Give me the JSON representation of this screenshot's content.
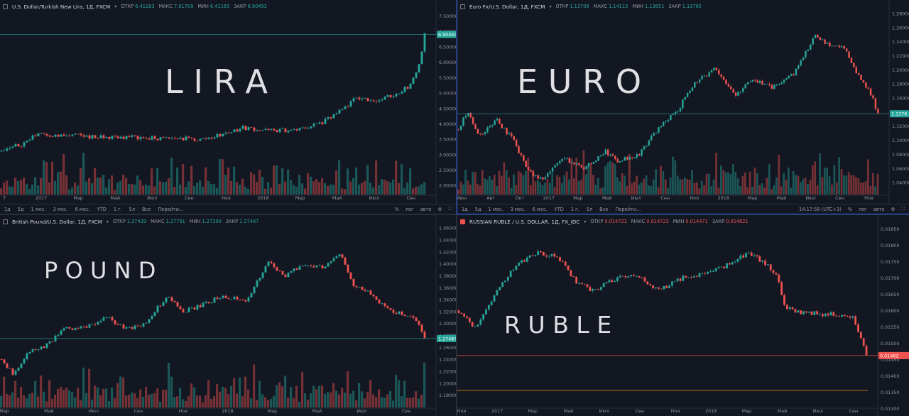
{
  "panels": [
    {
      "id": "lira",
      "symbol": "U.S. Dollar/Turkish New Lira, 1Д, FXCM",
      "icon": "square-icon",
      "ohlc": [
        {
          "k": "ОТКР",
          "v": "6.41183",
          "dir": "up"
        },
        {
          "k": "МАКС",
          "v": "7.01709",
          "dir": "up"
        },
        {
          "k": "МИН",
          "v": "6.41183",
          "dir": "up"
        },
        {
          "k": "ЗАКР",
          "v": "6.90493",
          "dir": "up"
        }
      ],
      "overlay": "LIRA",
      "price_label": "6.90493",
      "toolbar": true
    },
    {
      "id": "euro",
      "symbol": "Euro Fx/U.S. Dollar, 1Д, FXCM",
      "icon": "square-icon",
      "ohlc": [
        {
          "k": "ОТКР",
          "v": "1.13709",
          "dir": "up"
        },
        {
          "k": "МАКС",
          "v": "1.14115",
          "dir": "up"
        },
        {
          "k": "МИН",
          "v": "1.13651",
          "dir": "up"
        },
        {
          "k": "ЗАКР",
          "v": "1.13765",
          "dir": "up"
        }
      ],
      "overlay": "EURO",
      "price_label": "1.1376",
      "toolbar": true,
      "clock": "14:17:58 (UTC+3)"
    },
    {
      "id": "pound",
      "symbol": "British Pound/U.S. Dollar, 1Д, FXCM",
      "icon": "square-icon",
      "ohlc": [
        {
          "k": "ОТКР",
          "v": "1.27439",
          "dir": "up"
        },
        {
          "k": "МАКС",
          "v": "1.27791",
          "dir": "up"
        },
        {
          "k": "МИН",
          "v": "1.27300",
          "dir": "up"
        },
        {
          "k": "ЗАКР",
          "v": "1.27487",
          "dir": "up"
        }
      ],
      "overlay": "POUND",
      "price_label": "1.27487",
      "toolbar": false
    },
    {
      "id": "ruble",
      "symbol": "RUSSIAN RUBLE / U.S. DOLLAR, 1Д, FX_IDC",
      "icon": "flag-icon",
      "ohlc": [
        {
          "k": "ОТКР",
          "v": "0.014721",
          "dir": "dn"
        },
        {
          "k": "МАКС",
          "v": "0.014723",
          "dir": "dn"
        },
        {
          "k": "МИН",
          "v": "0.014471",
          "dir": "dn"
        },
        {
          "k": "ЗАКР",
          "v": "0.014621",
          "dir": "dn"
        }
      ],
      "overlay": "RUBLE",
      "price_label": "0.01462",
      "toolbar": false
    }
  ],
  "toolbar_items": [
    "1д",
    "5д",
    "1 мес.",
    "3 мес.",
    "6 мес.",
    "YTD",
    "1 г.",
    "5л",
    "Все",
    "Перейти..."
  ],
  "toolbar_right": [
    "%",
    "лог",
    "авто"
  ],
  "chart_data": [
    {
      "type": "candlestick",
      "title": "U.S. Dollar/Turkish New Lira, 1Д, FXCM",
      "yticks": [
        "7.50000",
        "7.00000",
        "6.50000",
        "6.00000",
        "5.50000",
        "5.00000",
        "4.50000",
        "4.00000",
        "3.50000",
        "3.00000",
        "2.50000",
        "2.00000"
      ],
      "ylim": [
        1.75,
        7.7
      ],
      "xticks": [
        "7",
        "2017",
        "Мар",
        "Май",
        "Июл",
        "Сен",
        "Ноя",
        "2018",
        "Мар",
        "Май",
        "Июл",
        "Сен"
      ],
      "path": [
        [
          0,
          3.1
        ],
        [
          0.05,
          3.35
        ],
        [
          0.09,
          3.72
        ],
        [
          0.13,
          3.6
        ],
        [
          0.18,
          3.62
        ],
        [
          0.24,
          3.55
        ],
        [
          0.3,
          3.58
        ],
        [
          0.36,
          3.52
        ],
        [
          0.42,
          3.53
        ],
        [
          0.47,
          3.48
        ],
        [
          0.52,
          3.65
        ],
        [
          0.57,
          3.88
        ],
        [
          0.63,
          3.78
        ],
        [
          0.7,
          3.8
        ],
        [
          0.76,
          4.05
        ],
        [
          0.8,
          4.4
        ],
        [
          0.84,
          4.85
        ],
        [
          0.89,
          4.75
        ],
        [
          0.93,
          4.95
        ],
        [
          0.97,
          5.3
        ],
        [
          0.985,
          5.9
        ],
        [
          0.993,
          6.4
        ],
        [
          1.0,
          6.9
        ]
      ],
      "last": 6.90493,
      "colors": {
        "up": "#26a69a",
        "down": "#ef5350",
        "last_line": "#26a69a"
      }
    },
    {
      "type": "candlestick",
      "title": "Euro Fx/U.S. Dollar, 1Д, FXCM",
      "yticks": [
        "1.28000",
        "1.26000",
        "1.24000",
        "1.22000",
        "1.20000",
        "1.18000",
        "1.16000",
        "1.14000",
        "1.12000",
        "1.10000",
        "1.08000",
        "1.06000",
        "1.04000"
      ],
      "ylim": [
        1.025,
        1.285
      ],
      "xticks": [
        "Июн",
        "Авг",
        "Окт",
        "2017",
        "Мар",
        "Май",
        "Июл",
        "Сен",
        "Ноя",
        "2018",
        "Мар",
        "Май",
        "Июл",
        "Сен",
        "Ноя"
      ],
      "path": [
        [
          0,
          1.115
        ],
        [
          0.02,
          1.14
        ],
        [
          0.05,
          1.105
        ],
        [
          0.09,
          1.13
        ],
        [
          0.13,
          1.1
        ],
        [
          0.17,
          1.055
        ],
        [
          0.2,
          1.045
        ],
        [
          0.25,
          1.075
        ],
        [
          0.3,
          1.06
        ],
        [
          0.35,
          1.085
        ],
        [
          0.38,
          1.07
        ],
        [
          0.43,
          1.08
        ],
        [
          0.48,
          1.12
        ],
        [
          0.52,
          1.14
        ],
        [
          0.56,
          1.18
        ],
        [
          0.61,
          1.2
        ],
        [
          0.66,
          1.165
        ],
        [
          0.7,
          1.185
        ],
        [
          0.75,
          1.175
        ],
        [
          0.8,
          1.195
        ],
        [
          0.85,
          1.25
        ],
        [
          0.88,
          1.235
        ],
        [
          0.92,
          1.23
        ],
        [
          0.95,
          1.195
        ],
        [
          0.98,
          1.17
        ],
        [
          1.0,
          1.138
        ]
      ],
      "last": 1.13765,
      "colors": {
        "up": "#26a69a",
        "down": "#ef5350",
        "last_line": "#26a69a"
      }
    },
    {
      "type": "candlestick",
      "title": "British Pound/U.S. Dollar, 1Д, FXCM",
      "yticks": [
        "1.46000",
        "1.44000",
        "1.42000",
        "1.40000",
        "1.38000",
        "1.36000",
        "1.34000",
        "1.32000",
        "1.30000",
        "1.28000",
        "1.26000",
        "1.24000",
        "1.22000",
        "1.20000",
        "1.18000"
      ],
      "ylim": [
        1.17,
        1.465
      ],
      "xticks": [
        "Мар",
        "Май",
        "Июл",
        "Сен",
        "Ноя",
        "2018",
        "Мар",
        "Май",
        "Июл",
        "Сен"
      ],
      "path": [
        [
          0,
          1.24
        ],
        [
          0.03,
          1.215
        ],
        [
          0.06,
          1.25
        ],
        [
          0.1,
          1.26
        ],
        [
          0.15,
          1.29
        ],
        [
          0.2,
          1.295
        ],
        [
          0.25,
          1.31
        ],
        [
          0.3,
          1.29
        ],
        [
          0.34,
          1.3
        ],
        [
          0.39,
          1.345
        ],
        [
          0.43,
          1.32
        ],
        [
          0.47,
          1.33
        ],
        [
          0.52,
          1.345
        ],
        [
          0.58,
          1.34
        ],
        [
          0.63,
          1.405
        ],
        [
          0.67,
          1.38
        ],
        [
          0.72,
          1.4
        ],
        [
          0.76,
          1.395
        ],
        [
          0.8,
          1.42
        ],
        [
          0.83,
          1.365
        ],
        [
          0.87,
          1.35
        ],
        [
          0.91,
          1.325
        ],
        [
          0.95,
          1.315
        ],
        [
          0.98,
          1.305
        ],
        [
          1.0,
          1.275
        ]
      ],
      "last": 1.27487,
      "colors": {
        "up": "#26a69a",
        "down": "#ef5350",
        "last_line": "#26a69a"
      }
    },
    {
      "type": "candlestick",
      "title": "RUSSIAN RUBLE / U.S. DOLLAR, 1Д, FX_IDC",
      "yticks": [
        "0.01850",
        "0.01800",
        "0.01750",
        "0.01700",
        "0.01650",
        "0.01600",
        "0.01550",
        "0.01500",
        "0.01450",
        "0.01400",
        "0.01350",
        "0.01300"
      ],
      "ylim": [
        0.01292,
        0.01862
      ],
      "xticks": [
        "Ноя",
        "2017",
        "Мар",
        "Май",
        "Июл",
        "Сен",
        "Ноя",
        "2018",
        "Мар",
        "Май",
        "Июл",
        "Сен"
      ],
      "path": [
        [
          0,
          0.016
        ],
        [
          0.04,
          0.0155
        ],
        [
          0.09,
          0.0165
        ],
        [
          0.14,
          0.0174
        ],
        [
          0.19,
          0.01775
        ],
        [
          0.24,
          0.0177
        ],
        [
          0.29,
          0.01685
        ],
        [
          0.33,
          0.0166
        ],
        [
          0.39,
          0.017
        ],
        [
          0.44,
          0.01705
        ],
        [
          0.49,
          0.0166
        ],
        [
          0.55,
          0.017
        ],
        [
          0.6,
          0.0171
        ],
        [
          0.66,
          0.0174
        ],
        [
          0.71,
          0.01775
        ],
        [
          0.75,
          0.01745
        ],
        [
          0.78,
          0.0171
        ],
        [
          0.8,
          0.0161
        ],
        [
          0.84,
          0.01595
        ],
        [
          0.89,
          0.0159
        ],
        [
          0.94,
          0.01585
        ],
        [
          0.97,
          0.01575
        ],
        [
          1.0,
          0.01462
        ]
      ],
      "last": 0.014621,
      "hline": 0.01355,
      "colors": {
        "up": "#26a69a",
        "down": "#ef5350",
        "last_line": "#ef5350"
      }
    }
  ]
}
